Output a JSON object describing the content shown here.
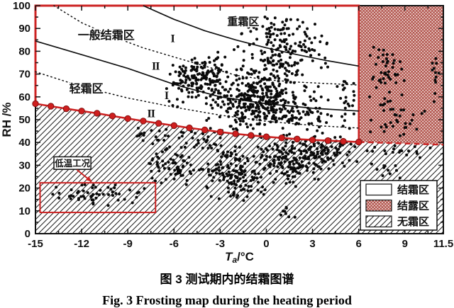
{
  "chart_data": {
    "type": "scatter",
    "title": "图 3 测试期内的结霜图谱",
    "title_en": "Fig. 3 Frosting map during the heating period",
    "ylabel": "RH /%",
    "xlabel": {
      "t": "T",
      "sub": "a",
      "rest": "/°C"
    },
    "xlim": [
      -15,
      11.5
    ],
    "ylim": [
      0,
      100
    ],
    "x_major_ticks": [
      -15,
      -12,
      -9,
      -6,
      -3,
      0,
      3,
      6,
      9,
      11.5
    ],
    "x_tick_labels": [
      "-15",
      "-12",
      "-9",
      "-6",
      "-3",
      "0",
      "3",
      "6",
      "9",
      "11.5"
    ],
    "x_minor_step": 1.5,
    "y_major_step": 10,
    "y_minor_step": 5,
    "y_tick_labels": [
      "0",
      "10",
      "20",
      "30",
      "40",
      "50",
      "60",
      "70",
      "80",
      "90",
      "100"
    ],
    "frost_line": {
      "x": [
        -15,
        -14,
        -13,
        -12,
        -11,
        -10,
        -9,
        -8,
        -7,
        -6,
        -5,
        -4,
        -3,
        -2,
        -1,
        0,
        1,
        2,
        3,
        4,
        5,
        6
      ],
      "rh": [
        57.0,
        55.9,
        54.8,
        53.8,
        52.8,
        51.6,
        50.5,
        49.4,
        48.4,
        47.4,
        46.4,
        45.5,
        44.6,
        43.8,
        43.1,
        42.5,
        42.0,
        41.5,
        41.1,
        40.8,
        40.5,
        40.2
      ],
      "dashed_extension": {
        "x": [
          6,
          11.5
        ],
        "rh": [
          40.2,
          39.0
        ]
      }
    },
    "boundary_curves": [
      {
        "name": "severe-frost-boundary",
        "style": "solid",
        "points": [
          [
            -8,
            100
          ],
          [
            -6,
            94
          ],
          [
            -4,
            89
          ],
          [
            -2,
            85
          ],
          [
            0,
            81.5
          ],
          [
            2,
            78.5
          ],
          [
            4,
            75.8
          ],
          [
            6,
            73.5
          ]
        ]
      },
      {
        "name": "general-frost-boundary",
        "style": "solid",
        "points": [
          [
            -15,
            84.5
          ],
          [
            -12,
            78.5
          ],
          [
            -9,
            72.5
          ],
          [
            -6,
            65.5
          ],
          [
            -3,
            60
          ],
          [
            0,
            57
          ],
          [
            3,
            55
          ],
          [
            6,
            53.8
          ]
        ]
      },
      {
        "name": "subzone-divider-upper",
        "style": "dotted",
        "points": [
          [
            -13.8,
            100
          ],
          [
            -12,
            92.5
          ],
          [
            -10,
            86.5
          ],
          [
            -8,
            81.5
          ],
          [
            -6,
            77.5
          ],
          [
            -4,
            73.5
          ],
          [
            -2,
            69.5
          ],
          [
            0,
            67.5
          ],
          [
            2,
            66.5
          ],
          [
            4,
            65.8
          ],
          [
            6,
            65.2
          ]
        ]
      },
      {
        "name": "subzone-divider-lower",
        "style": "dotted",
        "points": [
          [
            -15,
            71
          ],
          [
            -12,
            64.5
          ],
          [
            -9,
            59.5
          ],
          [
            -6,
            55.5
          ],
          [
            -3,
            52
          ],
          [
            0,
            49.3
          ],
          [
            3,
            47.5
          ],
          [
            6,
            46.3
          ]
        ]
      }
    ],
    "condensation_zone": {
      "x_start": 6
    },
    "zone_labels": [
      {
        "text": "重霜区",
        "x": -1.5,
        "rh": 93,
        "size": 15
      },
      {
        "text": "一般结霜区",
        "x": -10.4,
        "rh": 87,
        "size": 16
      },
      {
        "text": "轻霜区",
        "x": -11.7,
        "rh": 63.5,
        "size": 16
      }
    ],
    "subzone_numerals": [
      {
        "text": "I",
        "x": -6.1,
        "rh": 85.5
      },
      {
        "text": "II",
        "x": -7.2,
        "rh": 73.5
      },
      {
        "text": "I",
        "x": -6.5,
        "rh": 60.5
      },
      {
        "text": "II",
        "x": -7.5,
        "rh": 52.6
      }
    ],
    "low_temp_annotation": {
      "label": "低温工况",
      "label_box": {
        "x1": -13.8,
        "x2": -11.4,
        "rh1": 28.2,
        "rh2": 33.7
      },
      "arrow": {
        "x1": -12.3,
        "rh1": 28.0,
        "x2": -11.35,
        "rh2": 22.8
      },
      "rect": {
        "x1": -14.7,
        "x2": -7.2,
        "rh1": 9.3,
        "rh2": 22.3
      }
    },
    "legend": {
      "items": [
        {
          "label": "结霜区",
          "pattern": "none"
        },
        {
          "label": "结露区",
          "pattern": "crosshatch"
        },
        {
          "label": "无霜区",
          "pattern": "hatch"
        }
      ]
    },
    "scatter_clusters": [
      {
        "n": 130,
        "x": [
          -5.8,
          -2.3
        ],
        "rh": [
          58,
          80
        ]
      },
      {
        "n": 210,
        "x": [
          -4.2,
          1.6
        ],
        "rh": [
          44,
          70
        ]
      },
      {
        "n": 160,
        "x": [
          -2.6,
          3.2
        ],
        "rh": [
          52,
          86
        ]
      },
      {
        "n": 120,
        "x": [
          -1.2,
          4.6
        ],
        "rh": [
          42,
          66
        ]
      },
      {
        "n": 70,
        "x": [
          -0.5,
          4.6
        ],
        "rh": [
          66,
          93
        ]
      },
      {
        "n": 45,
        "x": [
          -2.2,
          3.6
        ],
        "rh": [
          82,
          96
        ]
      },
      {
        "n": 40,
        "x": [
          -6.8,
          -4.0
        ],
        "rh": [
          54,
          77
        ]
      },
      {
        "n": 70,
        "x": [
          -8.2,
          -4.0
        ],
        "rh": [
          20,
          39
        ]
      },
      {
        "n": 160,
        "x": [
          -4.6,
          0.6
        ],
        "rh": [
          13,
          40
        ]
      },
      {
        "n": 160,
        "x": [
          -0.6,
          4.2
        ],
        "rh": [
          20,
          45
        ]
      },
      {
        "n": 80,
        "x": [
          2.0,
          6.0
        ],
        "rh": [
          27,
          44
        ]
      },
      {
        "n": 30,
        "x": [
          -6.2,
          -2.0
        ],
        "rh": [
          36,
          46
        ]
      },
      {
        "n": 18,
        "x": [
          -9.5,
          -5.5
        ],
        "rh": [
          38,
          48
        ]
      },
      {
        "n": 55,
        "x": [
          -14.6,
          -7.6
        ],
        "rh": [
          12,
          23
        ]
      },
      {
        "n": 25,
        "x": [
          4.2,
          6.0
        ],
        "rh": [
          42,
          72
        ]
      },
      {
        "n": 48,
        "x": [
          6.3,
          9.6
        ],
        "rh": [
          52,
          90
        ]
      },
      {
        "n": 30,
        "x": [
          6.3,
          10.6
        ],
        "rh": [
          41,
          60
        ]
      },
      {
        "n": 12,
        "x": [
          10.7,
          11.4
        ],
        "rh": [
          55,
          84
        ]
      },
      {
        "n": 18,
        "x": [
          6.0,
          11.3
        ],
        "rh": [
          33,
          39.5
        ]
      },
      {
        "n": 12,
        "x": [
          6.2,
          9.5
        ],
        "rh": [
          20,
          34
        ]
      },
      {
        "n": 8,
        "x": [
          -1.0,
          3.5
        ],
        "rh": [
          6,
          13
        ]
      }
    ]
  },
  "colors": {
    "red": "#cc2222",
    "marker_red": "#cf1f1f",
    "marker_edge": "#801010",
    "black": "#111111",
    "dot": "#0a0a0a",
    "hatch_line": "#1c1c1c",
    "crosshatch_line": "#b05048",
    "crosshatch_bg": "#f6ebe9"
  }
}
